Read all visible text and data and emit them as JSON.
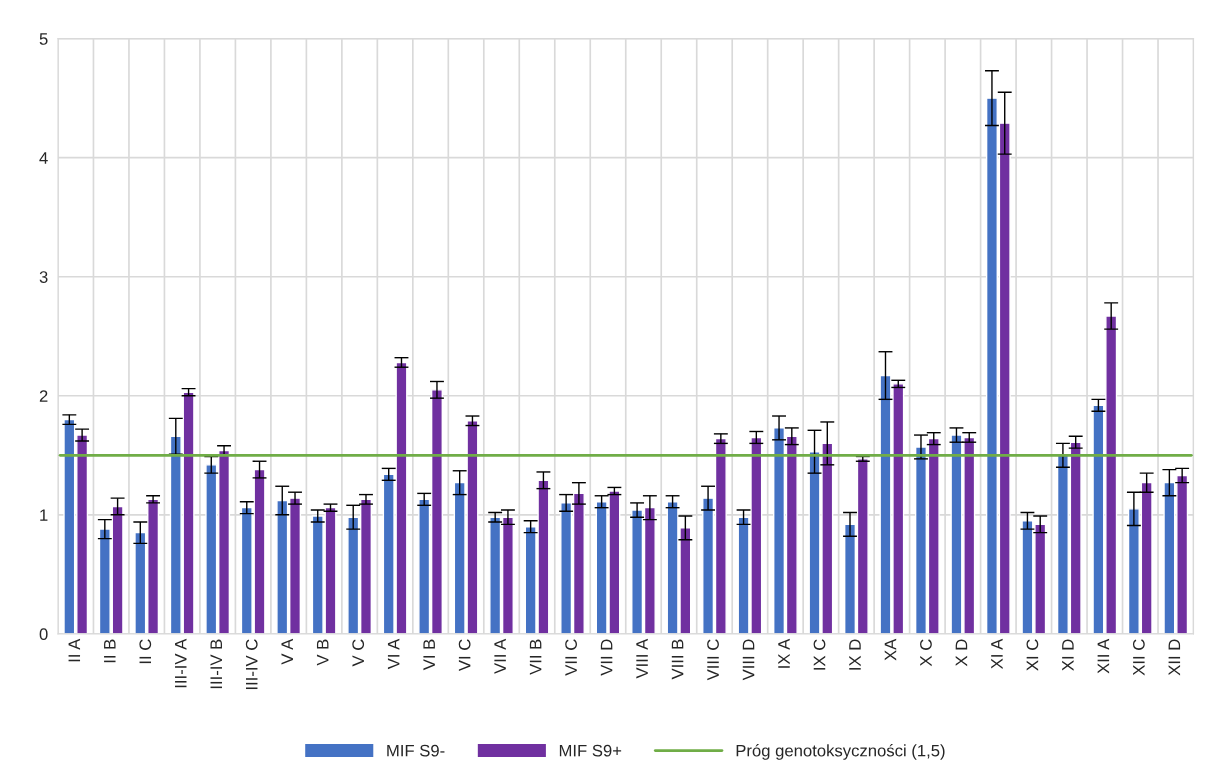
{
  "chart_data": {
    "type": "bar",
    "categories": [
      "II A",
      "II B",
      "II C",
      "III-IV A",
      "III-IV B",
      "III-IV C",
      "V A",
      "V B",
      "V C",
      "VI A",
      "VI B",
      "VI C",
      "VII A",
      "VII B",
      "VII C",
      "VII D",
      "VIII A",
      "VIII B",
      "VIII C",
      "VIII D",
      "IX A",
      "IX C",
      "IX D",
      "XA",
      "X C",
      "X D",
      "XI A",
      "XI C",
      "XI D",
      "XII A",
      "XII C",
      "XII D"
    ],
    "series": [
      {
        "name": "MIF S9-",
        "color": "#4472c4",
        "values": [
          1.8,
          0.88,
          0.85,
          1.66,
          1.42,
          1.06,
          1.12,
          0.99,
          0.98,
          1.34,
          1.13,
          1.27,
          0.98,
          0.9,
          1.1,
          1.11,
          1.04,
          1.11,
          1.14,
          0.98,
          1.73,
          1.53,
          0.92,
          2.17,
          1.57,
          1.67,
          4.5,
          0.95,
          1.5,
          1.92,
          1.05,
          1.27
        ],
        "errors": [
          0.04,
          0.08,
          0.09,
          0.15,
          0.07,
          0.05,
          0.12,
          0.05,
          0.1,
          0.05,
          0.05,
          0.1,
          0.04,
          0.05,
          0.07,
          0.05,
          0.06,
          0.05,
          0.1,
          0.06,
          0.1,
          0.18,
          0.1,
          0.2,
          0.1,
          0.06,
          0.23,
          0.07,
          0.1,
          0.05,
          0.14,
          0.11
        ]
      },
      {
        "name": "MIF S9+",
        "color": "#7030a0",
        "values": [
          1.67,
          1.07,
          1.13,
          2.03,
          1.54,
          1.38,
          1.14,
          1.06,
          1.13,
          2.28,
          2.05,
          1.79,
          0.98,
          1.29,
          1.18,
          1.2,
          1.06,
          0.89,
          1.64,
          1.65,
          1.66,
          1.6,
          1.47,
          2.1,
          1.64,
          1.65,
          4.29,
          0.92,
          1.61,
          2.67,
          1.27,
          1.33
        ],
        "errors": [
          0.05,
          0.07,
          0.03,
          0.03,
          0.04,
          0.07,
          0.05,
          0.03,
          0.04,
          0.04,
          0.07,
          0.04,
          0.06,
          0.07,
          0.09,
          0.03,
          0.1,
          0.1,
          0.04,
          0.05,
          0.07,
          0.18,
          0.02,
          0.03,
          0.05,
          0.04,
          0.26,
          0.07,
          0.05,
          0.11,
          0.08,
          0.06
        ]
      }
    ],
    "ref_lines": [
      {
        "axis": "y",
        "value": 1.5,
        "label": "Próg genotoksyczności (1,5)",
        "color": "#70ad47",
        "line_style": "solid"
      }
    ],
    "ylim": [
      0,
      5
    ],
    "yticks": [
      0,
      1,
      2,
      3,
      4,
      5
    ],
    "grid": true,
    "legend": "bottom"
  }
}
